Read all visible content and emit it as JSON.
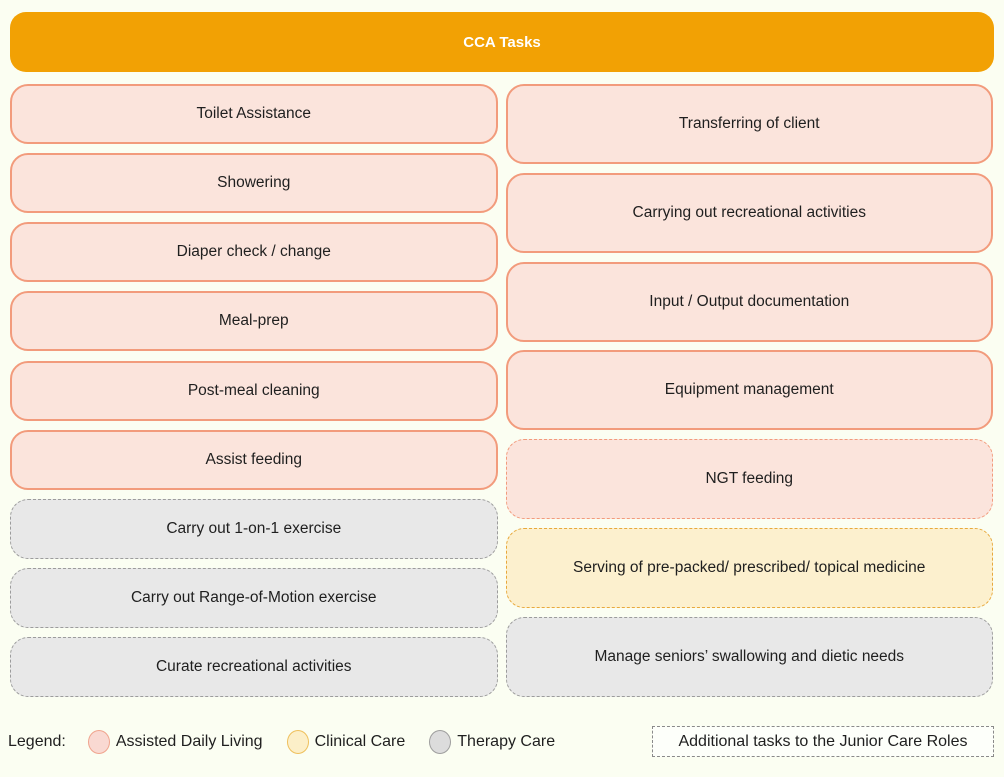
{
  "header": {
    "title": "CCA Tasks"
  },
  "colors": {
    "background": "#FBFEF2",
    "header_bg": "#F2A104",
    "header_text": "#FFFFFF",
    "assisted_daily_living_fill": "#FBE4DC",
    "assisted_daily_living_border": "#F29B7C",
    "clinical_care_fill": "#FCF0CE",
    "clinical_care_border": "#E8A93C",
    "therapy_care_fill": "#E8E8E8",
    "therapy_care_border": "#9C9C9C"
  },
  "columns": {
    "left": {
      "items": [
        {
          "label": "Toilet Assistance",
          "category": "Assisted Daily Living",
          "additional": false
        },
        {
          "label": "Showering",
          "category": "Assisted Daily Living",
          "additional": false
        },
        {
          "label": "Diaper check / change",
          "category": "Assisted Daily Living",
          "additional": false
        },
        {
          "label": "Meal-prep",
          "category": "Assisted Daily Living",
          "additional": false
        },
        {
          "label": "Post-meal cleaning",
          "category": "Assisted Daily Living",
          "additional": false
        },
        {
          "label": "Assist feeding",
          "category": "Assisted Daily Living",
          "additional": false
        },
        {
          "label": "Carry out 1-on-1 exercise",
          "category": "Therapy Care",
          "additional": true
        },
        {
          "label": "Carry out Range-of-Motion exercise",
          "category": "Therapy Care",
          "additional": true
        },
        {
          "label": "Curate recreational activities",
          "category": "Therapy Care",
          "additional": true
        }
      ]
    },
    "right": {
      "items": [
        {
          "label": "Transferring of client",
          "category": "Assisted Daily Living",
          "additional": false
        },
        {
          "label": "Carrying out recreational activities",
          "category": "Assisted Daily Living",
          "additional": false
        },
        {
          "label": "Input / Output documentation",
          "category": "Assisted Daily Living",
          "additional": false
        },
        {
          "label": "Equipment management",
          "category": "Assisted Daily Living",
          "additional": false
        },
        {
          "label": "NGT feeding",
          "category": "Assisted Daily Living",
          "additional": true
        },
        {
          "label": "Serving of pre-packed/ prescribed/ topical medicine",
          "category": "Clinical Care",
          "additional": true
        },
        {
          "label": "Manage seniors’ swallowing and dietic needs",
          "category": "Therapy Care",
          "additional": true
        }
      ]
    }
  },
  "legend": {
    "label": "Legend:",
    "items": [
      {
        "label": "Assisted Daily Living",
        "color": "#F9D9D2"
      },
      {
        "label": "Clinical Care",
        "color": "#FCEFC8"
      },
      {
        "label": "Therapy Care",
        "color": "#DCDCDC"
      }
    ],
    "additional_note": "Additional tasks to the Junior Care Roles"
  }
}
